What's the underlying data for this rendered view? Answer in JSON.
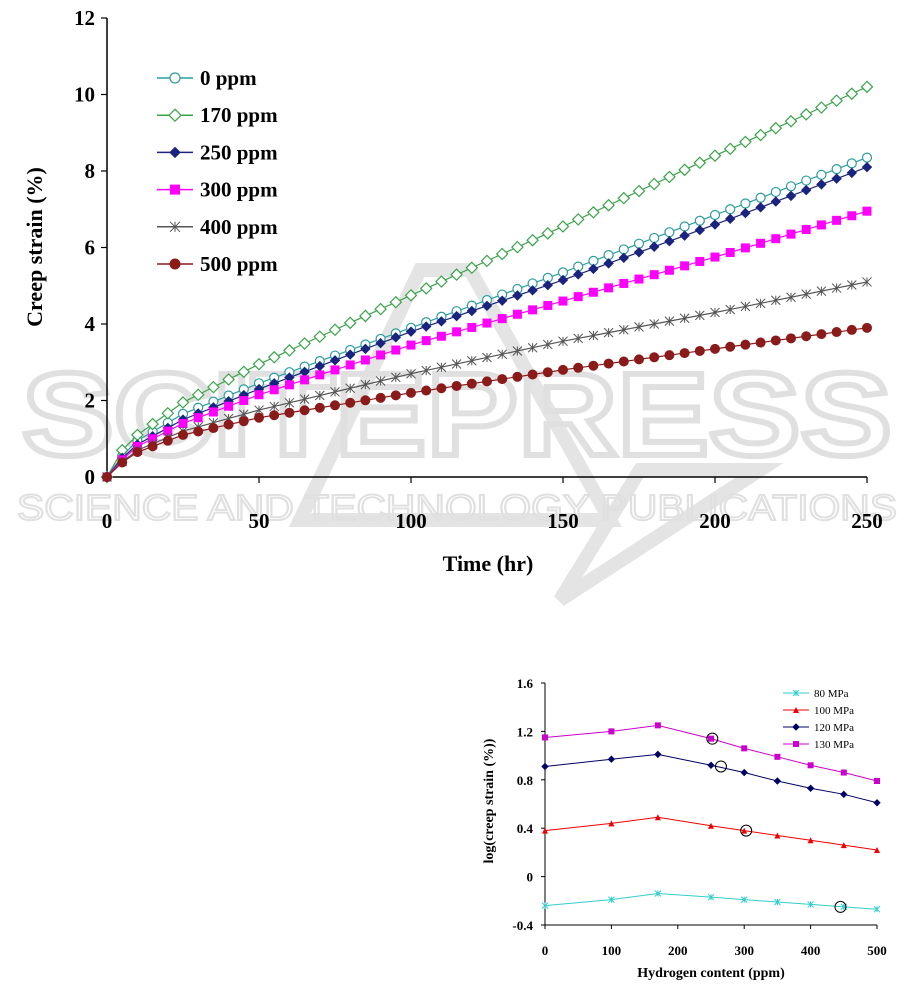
{
  "watermark": {
    "main": "SCITEPRESS",
    "sub": "SCIENCE AND TECHNOLOGY PUBLICATIONS"
  },
  "chart_data": [
    {
      "type": "line",
      "title": "",
      "xlabel": "Time (hr)",
      "ylabel": "Creep strain (%)",
      "xlim": [
        0,
        250
      ],
      "ylim": [
        0,
        12
      ],
      "xticks": [
        0,
        50,
        100,
        150,
        200,
        250
      ],
      "yticks": [
        0,
        2,
        4,
        6,
        8,
        10,
        12
      ],
      "grid": false,
      "legend_position": "top-left",
      "series": [
        {
          "name": "0 ppm",
          "color": "#2a9d9d",
          "marker": "circle-open",
          "curve": [
            [
              0,
              0
            ],
            [
              5,
              0.55
            ],
            [
              10,
              0.95
            ],
            [
              25,
              1.65
            ],
            [
              50,
              2.45
            ],
            [
              100,
              3.9
            ],
            [
              150,
              5.35
            ],
            [
              200,
              6.85
            ],
            [
              250,
              8.35
            ]
          ]
        },
        {
          "name": "170 ppm",
          "color": "#3aa34a",
          "marker": "diamond-open",
          "curve": [
            [
              0,
              0
            ],
            [
              5,
              0.7
            ],
            [
              10,
              1.1
            ],
            [
              25,
              1.95
            ],
            [
              50,
              2.95
            ],
            [
              100,
              4.75
            ],
            [
              150,
              6.55
            ],
            [
              200,
              8.4
            ],
            [
              250,
              10.2
            ]
          ]
        },
        {
          "name": "250 ppm",
          "color": "#1a237e",
          "marker": "diamond-filled",
          "curve": [
            [
              0,
              0
            ],
            [
              5,
              0.5
            ],
            [
              10,
              0.85
            ],
            [
              25,
              1.5
            ],
            [
              50,
              2.3
            ],
            [
              100,
              3.8
            ],
            [
              150,
              5.15
            ],
            [
              200,
              6.6
            ],
            [
              250,
              8.1
            ]
          ]
        },
        {
          "name": "300 ppm",
          "color": "#ff00ff",
          "marker": "square-filled",
          "curve": [
            [
              0,
              0
            ],
            [
              5,
              0.45
            ],
            [
              10,
              0.8
            ],
            [
              25,
              1.4
            ],
            [
              50,
              2.15
            ],
            [
              100,
              3.45
            ],
            [
              150,
              4.6
            ],
            [
              200,
              5.75
            ],
            [
              250,
              6.95
            ]
          ]
        },
        {
          "name": "400 ppm",
          "color": "#555555",
          "marker": "x",
          "curve": [
            [
              0,
              0
            ],
            [
              5,
              0.4
            ],
            [
              10,
              0.7
            ],
            [
              25,
              1.2
            ],
            [
              50,
              1.75
            ],
            [
              100,
              2.7
            ],
            [
              150,
              3.55
            ],
            [
              200,
              4.3
            ],
            [
              250,
              5.1
            ]
          ]
        },
        {
          "name": "500 ppm",
          "color": "#8b1a1a",
          "marker": "circle-filled",
          "curve": [
            [
              0,
              0
            ],
            [
              5,
              0.38
            ],
            [
              10,
              0.65
            ],
            [
              25,
              1.1
            ],
            [
              50,
              1.55
            ],
            [
              100,
              2.2
            ],
            [
              150,
              2.8
            ],
            [
              200,
              3.35
            ],
            [
              250,
              3.9
            ]
          ]
        }
      ]
    },
    {
      "type": "line",
      "title": "",
      "xlabel": "Hydrogen content (ppm)",
      "ylabel": "log(creep strain  (%))",
      "xlim": [
        0,
        500
      ],
      "ylim": [
        -0.4,
        1.6
      ],
      "xticks": [
        0,
        100,
        200,
        300,
        400,
        500
      ],
      "ytick_labels": [
        "-0.4",
        "0",
        "0.4",
        "0.8",
        "1.2",
        "1.6"
      ],
      "yticks": [
        -0.4,
        0,
        0.4,
        0.8,
        1.2,
        1.6
      ],
      "grid": false,
      "legend_position": "top-right",
      "x": [
        0,
        100,
        170,
        250,
        300,
        350,
        400,
        450,
        500
      ],
      "series": [
        {
          "name": "80 MPa",
          "color": "#33cccc",
          "marker": "x",
          "values": [
            -0.24,
            -0.19,
            -0.14,
            -0.17,
            -0.19,
            -0.21,
            -0.23,
            -0.25,
            -0.27
          ]
        },
        {
          "name": "100 MPa",
          "color": "#ee0000",
          "marker": "triangle",
          "values": [
            0.38,
            0.44,
            0.49,
            0.42,
            0.38,
            0.34,
            0.3,
            0.26,
            0.22
          ]
        },
        {
          "name": "120 MPa",
          "color": "#000066",
          "marker": "diamond-filled",
          "values": [
            0.91,
            0.97,
            1.01,
            0.92,
            0.86,
            0.79,
            0.73,
            0.68,
            0.61
          ]
        },
        {
          "name": "130 MPa",
          "color": "#cc00cc",
          "marker": "square-filled",
          "values": [
            1.15,
            1.2,
            1.25,
            1.14,
            1.06,
            0.99,
            0.92,
            0.86,
            0.79
          ]
        }
      ],
      "annotations": [
        {
          "type": "circle",
          "x": 252,
          "y": 1.14
        },
        {
          "type": "circle",
          "x": 265,
          "y": 0.91
        },
        {
          "type": "circle",
          "x": 303,
          "y": 0.38
        },
        {
          "type": "circle",
          "x": 445,
          "y": -0.25
        }
      ]
    }
  ]
}
